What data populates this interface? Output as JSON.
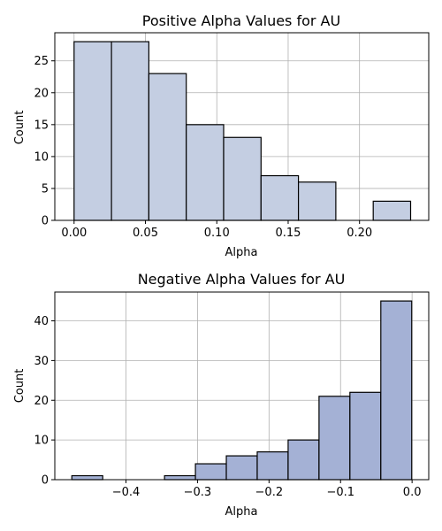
{
  "chart_data": [
    {
      "type": "bar",
      "title": "Positive Alpha Values for AU",
      "xlabel": "Alpha",
      "ylabel": "Count",
      "bar_color": "#c4cee2",
      "edge_color": "#000000",
      "bin_edges": [
        0.0,
        0.0262,
        0.0524,
        0.0786,
        0.1048,
        0.131,
        0.1572,
        0.1834,
        0.2096,
        0.2358
      ],
      "values": [
        28,
        28,
        23,
        15,
        13,
        7,
        6,
        0,
        3
      ],
      "xlim": [
        -0.0135,
        0.2485
      ],
      "ylim": [
        0,
        29.4
      ],
      "xticks": [
        0.0,
        0.05,
        0.1,
        0.15,
        0.2
      ],
      "xtick_labels": [
        "0.00",
        "0.05",
        "0.10",
        "0.15",
        "0.20"
      ],
      "yticks": [
        0,
        5,
        10,
        15,
        20,
        25
      ],
      "ytick_labels": [
        "0",
        "5",
        "10",
        "15",
        "20",
        "25"
      ],
      "grid": true
    },
    {
      "type": "bar",
      "title": "Negative Alpha Values for AU",
      "xlabel": "Alpha",
      "ylabel": "Count",
      "bar_color": "#a4b1d5",
      "edge_color": "#000000",
      "bin_edges": [
        -0.4757,
        -0.4325,
        -0.3893,
        -0.3461,
        -0.3029,
        -0.2597,
        -0.2165,
        -0.1733,
        -0.1301,
        -0.0869,
        -0.0437,
        -0.0005
      ],
      "values": [
        1,
        0,
        0,
        1,
        4,
        6,
        7,
        10,
        21,
        22,
        45
      ],
      "xlim": [
        -0.4995,
        0.0233
      ],
      "ylim": [
        0,
        47.25
      ],
      "xticks": [
        -0.4,
        -0.3,
        -0.2,
        -0.1,
        0.0
      ],
      "xtick_labels": [
        "−0.4",
        "−0.3",
        "−0.2",
        "−0.1",
        "0.0"
      ],
      "yticks": [
        0,
        10,
        20,
        30,
        40
      ],
      "ytick_labels": [
        "0",
        "10",
        "20",
        "30",
        "40"
      ],
      "grid": true
    }
  ]
}
